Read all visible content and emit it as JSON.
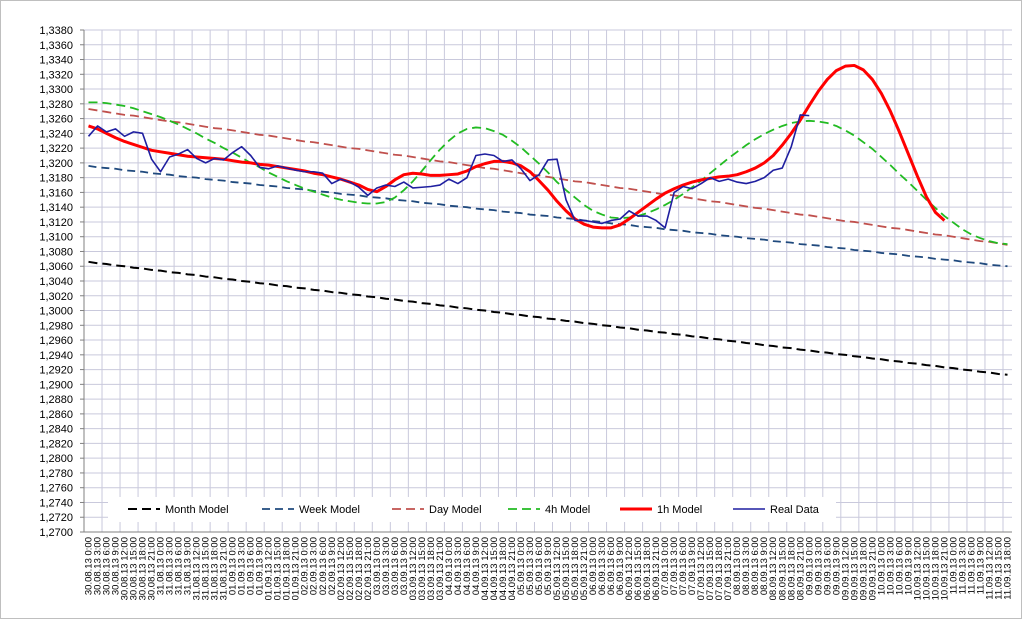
{
  "chart_data": {
    "type": "line",
    "categories": [
      "30.08.13 0:00",
      "30.08.13 3:00",
      "30.08.13 6:00",
      "30.08.13 9:00",
      "30.08.13 12:00",
      "30.08.13 15:00",
      "30.08.13 18:00",
      "30.08.13 21:00",
      "31.08.13 0:00",
      "31.08.13 3:00",
      "31.08.13 6:00",
      "31.08.13 9:00",
      "31.08.13 12:00",
      "31.08.13 15:00",
      "31.08.13 18:00",
      "31.08.13 21:00",
      "01.09.13 0:00",
      "01.09.13 3:00",
      "01.09.13 6:00",
      "01.09.13 9:00",
      "01.09.13 12:00",
      "01.09.13 15:00",
      "01.09.13 18:00",
      "01.09.13 21:00",
      "02.09.13 0:00",
      "02.09.13 3:00",
      "02.09.13 6:00",
      "02.09.13 9:00",
      "02.09.13 12:00",
      "02.09.13 15:00",
      "02.09.13 18:00",
      "02.09.13 21:00",
      "03.09.13 0:00",
      "03.09.13 3:00",
      "03.09.13 6:00",
      "03.09.13 9:00",
      "03.09.13 12:00",
      "03.09.13 15:00",
      "03.09.13 18:00",
      "03.09.13 21:00",
      "04.09.13 0:00",
      "04.09.13 3:00",
      "04.09.13 6:00",
      "04.09.13 9:00",
      "04.09.13 12:00",
      "04.09.13 15:00",
      "04.09.13 18:00",
      "04.09.13 21:00",
      "05.09.13 0:00",
      "05.09.13 3:00",
      "05.09.13 6:00",
      "05.09.13 9:00",
      "05.09.13 12:00",
      "05.09.13 15:00",
      "05.09.13 18:00",
      "05.09.13 21:00",
      "06.09.13 0:00",
      "06.09.13 3:00",
      "06.09.13 6:00",
      "06.09.13 9:00",
      "06.09.13 12:00",
      "06.09.13 15:00",
      "06.09.13 18:00",
      "06.09.13 21:00",
      "07.09.13 0:00",
      "07.09.13 3:00",
      "07.09.13 6:00",
      "07.09.13 9:00",
      "07.09.13 12:00",
      "07.09.13 15:00",
      "07.09.13 18:00",
      "07.09.13 21:00",
      "08.09.13 0:00",
      "08.09.13 3:00",
      "08.09.13 6:00",
      "08.09.13 9:00",
      "08.09.13 12:00",
      "08.09.13 15:00",
      "08.09.13 18:00",
      "08.09.13 21:00",
      "09.09.13 0:00",
      "09.09.13 3:00",
      "09.09.13 6:00",
      "09.09.13 9:00",
      "09.09.13 12:00",
      "09.09.13 15:00",
      "09.09.13 18:00",
      "09.09.13 21:00",
      "10.09.13 0:00",
      "10.09.13 3:00",
      "10.09.13 6:00",
      "10.09.13 9:00",
      "10.09.13 12:00",
      "10.09.13 15:00",
      "10.09.13 18:00",
      "10.09.13 21:00",
      "11.09.13 0:00",
      "11.09.13 3:00",
      "11.09.13 6:00",
      "11.09.13 9:00",
      "11.09.13 12:00",
      "11.09.13 15:00",
      "11.09.13 18:00"
    ],
    "series": [
      {
        "name": "Month Model",
        "color": "#000000",
        "values": [
          1.3066,
          1.3064,
          1.3063,
          1.3061,
          1.306,
          1.3058,
          1.3057,
          1.3055,
          1.3054,
          1.3052,
          1.3051,
          1.3049,
          1.3048,
          1.3046,
          1.3045,
          1.3043,
          1.3042,
          1.304,
          1.3039,
          1.3037,
          1.3036,
          1.3034,
          1.3033,
          1.3031,
          1.303,
          1.3028,
          1.3027,
          1.3025,
          1.3024,
          1.3022,
          1.3021,
          1.3019,
          1.3018,
          1.3016,
          1.3015,
          1.3013,
          1.3012,
          1.301,
          1.3009,
          1.3007,
          1.3006,
          1.3004,
          1.3003,
          1.3001,
          1.3,
          1.2998,
          1.2997,
          1.2995,
          1.2994,
          1.2992,
          1.2991,
          1.2989,
          1.2988,
          1.2986,
          1.2985,
          1.2983,
          1.2982,
          1.298,
          1.2979,
          1.2977,
          1.2976,
          1.2974,
          1.2973,
          1.2971,
          1.297,
          1.2968,
          1.2967,
          1.2965,
          1.2964,
          1.2962,
          1.2961,
          1.2959,
          1.2958,
          1.2956,
          1.2955,
          1.2953,
          1.2952,
          1.295,
          1.2949,
          1.2947,
          1.2946,
          1.2944,
          1.2943,
          1.2941,
          1.294,
          1.2938,
          1.2937,
          1.2935,
          1.2934,
          1.2932,
          1.2931,
          1.2929,
          1.2928,
          1.2926,
          1.2925,
          1.2923,
          1.2922,
          1.292,
          1.2919,
          1.2917,
          1.2916,
          1.2914,
          1.2913
        ]
      },
      {
        "name": "Week Model",
        "color": "#1f497d",
        "values": [
          1.3196,
          1.3194,
          1.3193,
          1.3192,
          1.319,
          1.3189,
          1.3188,
          1.3186,
          1.3185,
          1.3184,
          1.3182,
          1.3181,
          1.318,
          1.3178,
          1.3177,
          1.3176,
          1.3174,
          1.3173,
          1.3172,
          1.317,
          1.3169,
          1.3168,
          1.3166,
          1.3165,
          1.3164,
          1.3162,
          1.3161,
          1.316,
          1.3158,
          1.3157,
          1.3156,
          1.3154,
          1.3153,
          1.3152,
          1.315,
          1.3149,
          1.3148,
          1.3146,
          1.3145,
          1.3144,
          1.3142,
          1.3141,
          1.314,
          1.3138,
          1.3137,
          1.3136,
          1.3134,
          1.3133,
          1.3132,
          1.313,
          1.3129,
          1.3128,
          1.3126,
          1.3125,
          1.3124,
          1.3122,
          1.3121,
          1.312,
          1.3118,
          1.3117,
          1.3116,
          1.3114,
          1.3113,
          1.3112,
          1.311,
          1.3109,
          1.3108,
          1.3106,
          1.3105,
          1.3104,
          1.3102,
          1.3101,
          1.31,
          1.3098,
          1.3097,
          1.3096,
          1.3094,
          1.3093,
          1.3092,
          1.309,
          1.3089,
          1.3088,
          1.3086,
          1.3085,
          1.3084,
          1.3082,
          1.3081,
          1.308,
          1.3078,
          1.3077,
          1.3076,
          1.3074,
          1.3073,
          1.3072,
          1.307,
          1.3069,
          1.3068,
          1.3066,
          1.3065,
          1.3064,
          1.3062,
          1.3061,
          1.306
        ]
      },
      {
        "name": "Day Model",
        "color": "#c0504d",
        "values": [
          1.3273,
          1.3271,
          1.3269,
          1.3267,
          1.3265,
          1.3264,
          1.3262,
          1.326,
          1.3258,
          1.3256,
          1.3255,
          1.3253,
          1.3251,
          1.3249,
          1.3247,
          1.3246,
          1.3244,
          1.3242,
          1.324,
          1.3238,
          1.3237,
          1.3235,
          1.3233,
          1.3231,
          1.3229,
          1.3228,
          1.3226,
          1.3224,
          1.3222,
          1.322,
          1.3219,
          1.3217,
          1.3215,
          1.3213,
          1.3211,
          1.321,
          1.3208,
          1.3206,
          1.3204,
          1.3202,
          1.3201,
          1.3199,
          1.3197,
          1.3195,
          1.3193,
          1.3192,
          1.319,
          1.3188,
          1.3186,
          1.3184,
          1.3183,
          1.3181,
          1.3179,
          1.3177,
          1.3175,
          1.3174,
          1.3172,
          1.317,
          1.3168,
          1.3166,
          1.3165,
          1.3163,
          1.3161,
          1.3159,
          1.3157,
          1.3156,
          1.3154,
          1.3152,
          1.315,
          1.3148,
          1.3147,
          1.3145,
          1.3143,
          1.3141,
          1.3139,
          1.3138,
          1.3136,
          1.3134,
          1.3132,
          1.313,
          1.3129,
          1.3127,
          1.3125,
          1.3123,
          1.3121,
          1.312,
          1.3118,
          1.3116,
          1.3114,
          1.3112,
          1.3111,
          1.3109,
          1.3107,
          1.3105,
          1.3103,
          1.3102,
          1.31,
          1.3098,
          1.3096,
          1.3094,
          1.3093,
          1.3091,
          1.3089
        ]
      },
      {
        "name": "4h Model",
        "color": "#22bb22",
        "values": [
          1.3282,
          1.3282,
          1.3281,
          1.3279,
          1.3277,
          1.3274,
          1.327,
          1.3266,
          1.3262,
          1.3257,
          1.3252,
          1.3246,
          1.324,
          1.3233,
          1.3227,
          1.322,
          1.3214,
          1.3207,
          1.32,
          1.3194,
          1.3187,
          1.3181,
          1.3175,
          1.317,
          1.3165,
          1.3161,
          1.3157,
          1.3153,
          1.315,
          1.3148,
          1.3146,
          1.3145,
          1.3145,
          1.3147,
          1.3153,
          1.3163,
          1.3175,
          1.3189,
          1.3204,
          1.3218,
          1.323,
          1.324,
          1.3246,
          1.3248,
          1.3247,
          1.3243,
          1.3238,
          1.323,
          1.3221,
          1.321,
          1.3199,
          1.3187,
          1.3174,
          1.3163,
          1.3153,
          1.3143,
          1.3135,
          1.313,
          1.3126,
          1.3125,
          1.3126,
          1.3128,
          1.3132,
          1.3137,
          1.3143,
          1.315,
          1.3158,
          1.3167,
          1.3176,
          1.3186,
          1.3196,
          1.3206,
          1.3215,
          1.3224,
          1.3232,
          1.3239,
          1.3245,
          1.325,
          1.3254,
          1.3256,
          1.3257,
          1.3256,
          1.3254,
          1.325,
          1.3244,
          1.3237,
          1.3228,
          1.3219,
          1.3208,
          1.3197,
          1.3185,
          1.3174,
          1.3162,
          1.315,
          1.3139,
          1.3128,
          1.3119,
          1.311,
          1.3103,
          1.3098,
          1.3094,
          1.3091,
          1.309
        ]
      },
      {
        "name": "1h Model",
        "color": "#ff0000",
        "values": [
          1.325,
          1.3246,
          1.324,
          1.3234,
          1.3229,
          1.3225,
          1.3221,
          1.3217,
          1.3215,
          1.3213,
          1.3211,
          1.3209,
          1.3208,
          1.3207,
          1.3206,
          1.3205,
          1.3203,
          1.3201,
          1.32,
          1.3198,
          1.3197,
          1.3195,
          1.3193,
          1.3191,
          1.3189,
          1.3186,
          1.3184,
          1.3181,
          1.3178,
          1.3174,
          1.317,
          1.3164,
          1.3161,
          1.3168,
          1.3177,
          1.3184,
          1.3186,
          1.3185,
          1.3183,
          1.3183,
          1.3184,
          1.3185,
          1.3189,
          1.3195,
          1.3199,
          1.3202,
          1.3202,
          1.32,
          1.3196,
          1.3188,
          1.3176,
          1.3163,
          1.3148,
          1.3135,
          1.3124,
          1.3117,
          1.3113,
          1.3112,
          1.3112,
          1.3116,
          1.3124,
          1.3133,
          1.3142,
          1.3151,
          1.3159,
          1.3165,
          1.317,
          1.3174,
          1.3177,
          1.3179,
          1.3181,
          1.3182,
          1.3184,
          1.3188,
          1.3193,
          1.32,
          1.321,
          1.3224,
          1.324,
          1.3258,
          1.3278,
          1.3297,
          1.3313,
          1.3325,
          1.3331,
          1.3332,
          1.3326,
          1.3313,
          1.3294,
          1.327,
          1.3242,
          1.3212,
          1.3182,
          1.3154,
          1.3133,
          1.3122,
          null,
          null,
          null,
          null,
          null,
          null,
          null
        ]
      },
      {
        "name": "Real Data",
        "color": "#1f1fa0",
        "values": [
          1.3236,
          1.325,
          1.3242,
          1.3246,
          1.3236,
          1.3242,
          1.324,
          1.3205,
          1.3188,
          1.3208,
          1.3212,
          1.3218,
          1.3206,
          1.32,
          1.3206,
          1.3204,
          1.3214,
          1.3222,
          1.321,
          1.3194,
          1.3192,
          1.3196,
          1.3193,
          1.319,
          1.3188,
          1.3188,
          1.3186,
          1.3172,
          1.3178,
          1.3174,
          1.3167,
          1.3156,
          1.3166,
          1.317,
          1.3168,
          1.3174,
          1.3166,
          1.3167,
          1.3168,
          1.317,
          1.3178,
          1.3172,
          1.318,
          1.321,
          1.3212,
          1.321,
          1.3202,
          1.3204,
          1.3192,
          1.3176,
          1.3184,
          1.3204,
          1.3205,
          1.315,
          1.3122,
          1.3122,
          1.312,
          1.3118,
          1.3122,
          1.3124,
          1.3135,
          1.3128,
          1.3128,
          1.3122,
          1.3112,
          1.316,
          1.3168,
          1.3165,
          1.3172,
          1.318,
          1.3175,
          1.3178,
          1.3174,
          1.3172,
          1.3175,
          1.318,
          1.319,
          1.3193,
          1.3222,
          1.3265,
          1.3264,
          null,
          null,
          null,
          null,
          null,
          null,
          null,
          null,
          null,
          null,
          null,
          null,
          null,
          null,
          null,
          null,
          null,
          null,
          null,
          null,
          null,
          null
        ]
      }
    ],
    "ylim": [
      1.27,
      1.338
    ],
    "yticks": [
      {
        "value": 1.27,
        "label": "1,2700"
      },
      {
        "value": 1.272,
        "label": "1,2720"
      },
      {
        "value": 1.274,
        "label": "1,2740"
      },
      {
        "value": 1.276,
        "label": "1,2760"
      },
      {
        "value": 1.278,
        "label": "1,2780"
      },
      {
        "value": 1.28,
        "label": "1,2800"
      },
      {
        "value": 1.282,
        "label": "1,2820"
      },
      {
        "value": 1.284,
        "label": "1,2840"
      },
      {
        "value": 1.286,
        "label": "1,2860"
      },
      {
        "value": 1.288,
        "label": "1,2880"
      },
      {
        "value": 1.29,
        "label": "1,2900"
      },
      {
        "value": 1.292,
        "label": "1,2920"
      },
      {
        "value": 1.294,
        "label": "1,2940"
      },
      {
        "value": 1.296,
        "label": "1,2960"
      },
      {
        "value": 1.298,
        "label": "1,2980"
      },
      {
        "value": 1.3,
        "label": "1,3000"
      },
      {
        "value": 1.302,
        "label": "1,3020"
      },
      {
        "value": 1.304,
        "label": "1,3040"
      },
      {
        "value": 1.306,
        "label": "1,3060"
      },
      {
        "value": 1.308,
        "label": "1,3080"
      },
      {
        "value": 1.31,
        "label": "1,3100"
      },
      {
        "value": 1.312,
        "label": "1,3120"
      },
      {
        "value": 1.314,
        "label": "1,3140"
      },
      {
        "value": 1.316,
        "label": "1,3160"
      },
      {
        "value": 1.318,
        "label": "1,3180"
      },
      {
        "value": 1.32,
        "label": "1,3200"
      },
      {
        "value": 1.322,
        "label": "1,3220"
      },
      {
        "value": 1.324,
        "label": "1,3240"
      },
      {
        "value": 1.326,
        "label": "1,3260"
      },
      {
        "value": 1.328,
        "label": "1,3280"
      },
      {
        "value": 1.33,
        "label": "1,3300"
      },
      {
        "value": 1.332,
        "label": "1,3320"
      },
      {
        "value": 1.334,
        "label": "1,3340"
      },
      {
        "value": 1.336,
        "label": "1,3360"
      },
      {
        "value": 1.338,
        "label": "1,3380"
      }
    ],
    "grid": true,
    "legend": "bottom"
  }
}
